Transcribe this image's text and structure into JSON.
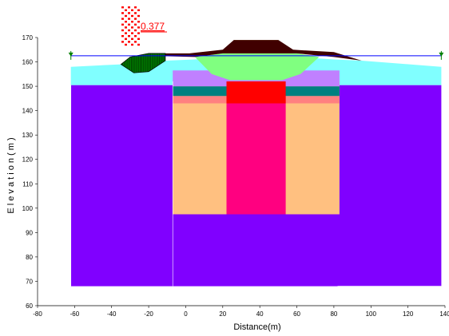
{
  "chart_data": {
    "type": "cross-section",
    "xlabel": "Distance(m)",
    "ylabel": "E l e v a t i o n ( m )",
    "xlim": [
      -80,
      140
    ],
    "ylim": [
      60,
      170
    ],
    "x_ticks": [
      -80,
      -60,
      -40,
      -20,
      0,
      20,
      40,
      60,
      80,
      100,
      120,
      140
    ],
    "y_ticks": [
      60,
      70,
      80,
      90,
      100,
      110,
      120,
      130,
      140,
      150,
      160,
      170
    ],
    "factor_of_safety": "0.377",
    "water_table": {
      "elevation": 162.5,
      "x_start": -62,
      "x_end": 138
    },
    "slip_surface": {
      "center_x": -26,
      "radius_top_y": 163.5,
      "bottom_y": 155.5,
      "x_start": -35,
      "x_end": -11
    },
    "regions": [
      {
        "name": "foundation-soil",
        "color": "#8000ff",
        "points": [
          [
            -62,
            150.5
          ],
          [
            138,
            150.5
          ],
          [
            138,
            68
          ],
          [
            -62,
            68
          ]
        ]
      },
      {
        "name": "surface-soil",
        "color": "#80ffff",
        "points": [
          [
            -62,
            158
          ],
          [
            -35,
            159
          ],
          [
            -11,
            160.5
          ],
          [
            5,
            161
          ],
          [
            20,
            162
          ],
          [
            40,
            162
          ],
          [
            60,
            162
          ],
          [
            80,
            161
          ],
          [
            95,
            160.5
          ],
          [
            138,
            158
          ],
          [
            138,
            150.5
          ],
          [
            -62,
            150.5
          ]
        ]
      },
      {
        "name": "improved-zone",
        "color": "#ffc080",
        "points": [
          [
            -7,
            152
          ],
          [
            83,
            152
          ],
          [
            83,
            97.5
          ],
          [
            -7,
            97.5
          ]
        ]
      },
      {
        "name": "pink-band",
        "color": "#ff8080",
        "points": [
          [
            -7,
            146
          ],
          [
            83,
            146
          ],
          [
            83,
            143
          ],
          [
            -7,
            143
          ]
        ]
      },
      {
        "name": "green-band",
        "color": "#008080",
        "points": [
          [
            -7,
            150
          ],
          [
            83,
            150
          ],
          [
            83,
            146
          ],
          [
            -7,
            146
          ]
        ]
      },
      {
        "name": "lilac-layer",
        "color": "#c080ff",
        "points": [
          [
            -7,
            156.5
          ],
          [
            83,
            156.5
          ],
          [
            83,
            150
          ],
          [
            -7,
            150
          ]
        ]
      },
      {
        "name": "central-column",
        "color": "#ff0080",
        "points": [
          [
            22,
            146
          ],
          [
            54,
            146
          ],
          [
            54,
            97.5
          ],
          [
            22,
            97.5
          ]
        ]
      },
      {
        "name": "red-block",
        "color": "#ff0000",
        "points": [
          [
            22,
            152
          ],
          [
            54,
            152
          ],
          [
            54,
            143
          ],
          [
            22,
            143
          ]
        ]
      },
      {
        "name": "embankment-green",
        "color": "#80ff80",
        "points": [
          [
            5,
            162
          ],
          [
            20,
            163.5
          ],
          [
            40,
            163.5
          ],
          [
            60,
            163.5
          ],
          [
            72,
            162
          ],
          [
            62,
            155
          ],
          [
            52,
            152.5
          ],
          [
            24,
            152.5
          ],
          [
            14,
            155
          ]
        ]
      },
      {
        "name": "crest-yellow",
        "color": "#ffff80",
        "points": [
          [
            20,
            163.5
          ],
          [
            26,
            169
          ],
          [
            50,
            169
          ],
          [
            58,
            163.5
          ]
        ]
      },
      {
        "name": "embankment-crust",
        "color": "#400000",
        "points": [
          [
            -20,
            163.5
          ],
          [
            2,
            163.5
          ],
          [
            20,
            165
          ],
          [
            26,
            169
          ],
          [
            50,
            169
          ],
          [
            58,
            165
          ],
          [
            80,
            164
          ],
          [
            95,
            160.5
          ],
          [
            80,
            162
          ],
          [
            60,
            163.5
          ],
          [
            20,
            163.5
          ],
          [
            5,
            162
          ],
          [
            -20,
            162.5
          ]
        ]
      },
      {
        "name": "slip-mass",
        "color": "#008000",
        "points": [
          [
            -35,
            159
          ],
          [
            -30,
            162
          ],
          [
            -20,
            163.5
          ],
          [
            -11,
            163.5
          ],
          [
            -11,
            160.5
          ],
          [
            -20,
            156
          ],
          [
            -28,
            155.5
          ]
        ]
      }
    ]
  }
}
